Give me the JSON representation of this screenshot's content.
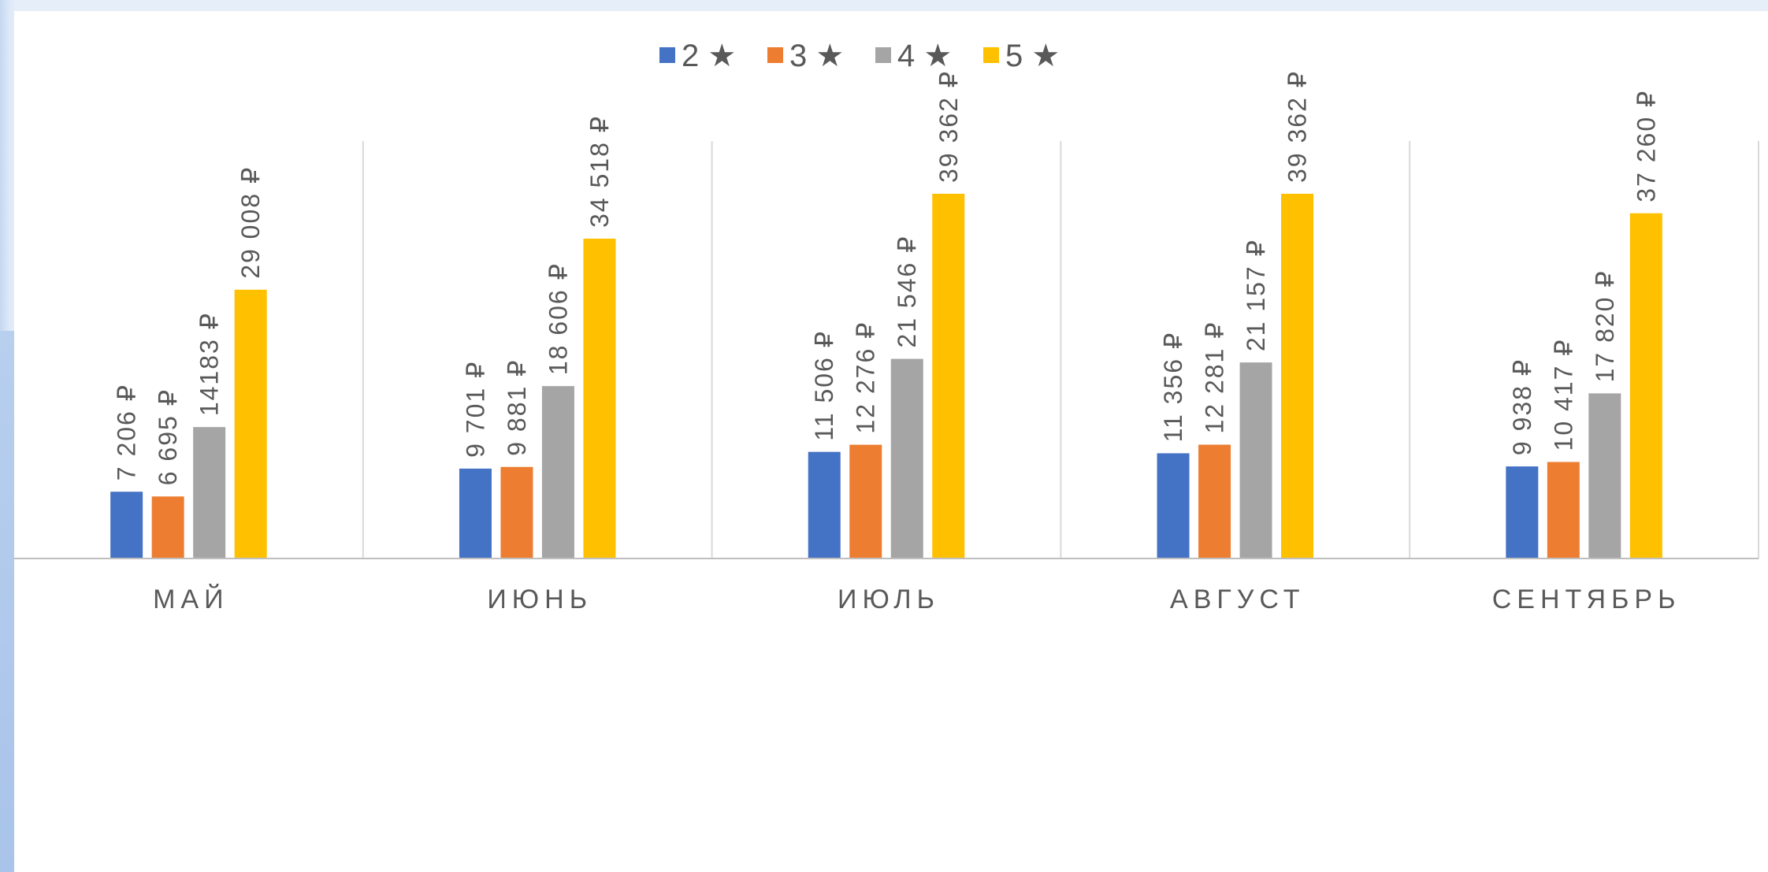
{
  "chart_data": {
    "type": "bar",
    "title": "",
    "xlabel": "",
    "ylabel": "",
    "ylim": [
      0,
      39362
    ],
    "grid": false,
    "legend_position": "top",
    "categories": [
      "МАЙ",
      "ИЮНЬ",
      "ИЮЛЬ",
      "АВГУСТ",
      "СЕНТЯБРЬ"
    ],
    "series": [
      {
        "name": "2 ★",
        "color": "#4472c4",
        "values": [
          7206,
          9701,
          11506,
          11356,
          9938
        ],
        "labels": [
          "7 206 ₽",
          "9 701 ₽",
          "11 506 ₽",
          "11 356 ₽",
          "9 938 ₽"
        ]
      },
      {
        "name": "3 ★",
        "color": "#ed7d31",
        "values": [
          6695,
          9881,
          12276,
          12281,
          10417
        ],
        "labels": [
          "6 695 ₽",
          "9 881 ₽",
          "12 276 ₽",
          "12 281 ₽",
          "10 417 ₽"
        ]
      },
      {
        "name": "4 ★",
        "color": "#a5a5a5",
        "values": [
          14183,
          18606,
          21546,
          21157,
          17820
        ],
        "labels": [
          "14183 ₽",
          "18 606 ₽",
          "21 546 ₽",
          "21 157 ₽",
          "17 820 ₽"
        ]
      },
      {
        "name": "5 ★",
        "color": "#ffc000",
        "values": [
          29008,
          34518,
          39362,
          39362,
          37260
        ],
        "labels": [
          "29 008 ₽",
          "34 518 ₽",
          "39 362 ₽",
          "39 362 ₽",
          "37 260 ₽"
        ]
      }
    ]
  }
}
